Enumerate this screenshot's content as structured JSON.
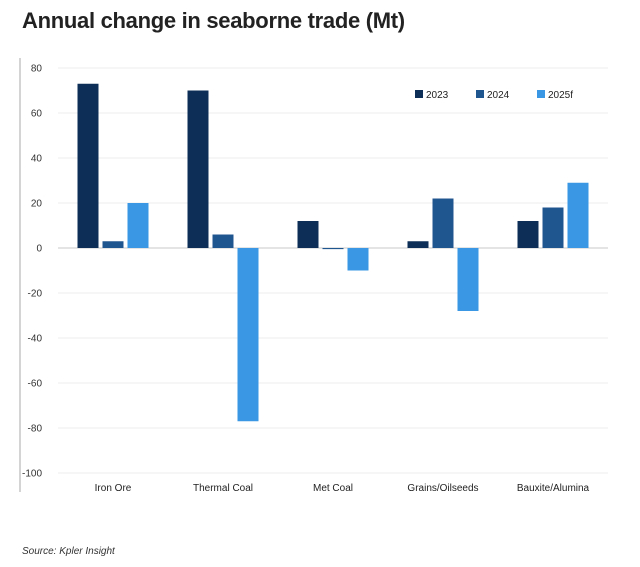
{
  "chart_data": {
    "type": "bar",
    "title": "Annual change in seaborne trade (Mt)",
    "source": "Source: Kpler Insight",
    "categories": [
      "Iron Ore",
      "Thermal Coal",
      "Met Coal",
      "Grains/Oilseeds",
      "Bauxite/Alumina"
    ],
    "series": [
      {
        "name": "2023",
        "color": "#0d2e57",
        "values": [
          73,
          70,
          12,
          3,
          12
        ]
      },
      {
        "name": "2024",
        "color": "#20568f",
        "values": [
          3,
          6,
          -0.5,
          22,
          18
        ]
      },
      {
        "name": "2025f",
        "color": "#3a97e3",
        "values": [
          20,
          -77,
          -10,
          -28,
          29
        ]
      }
    ],
    "yticks": [
      80,
      60,
      40,
      20,
      0,
      -20,
      -40,
      -60,
      -80,
      -100
    ],
    "ylim": [
      -100,
      80
    ],
    "xlabel": "",
    "ylabel": "",
    "grid": true,
    "legend_position": "top-right"
  }
}
